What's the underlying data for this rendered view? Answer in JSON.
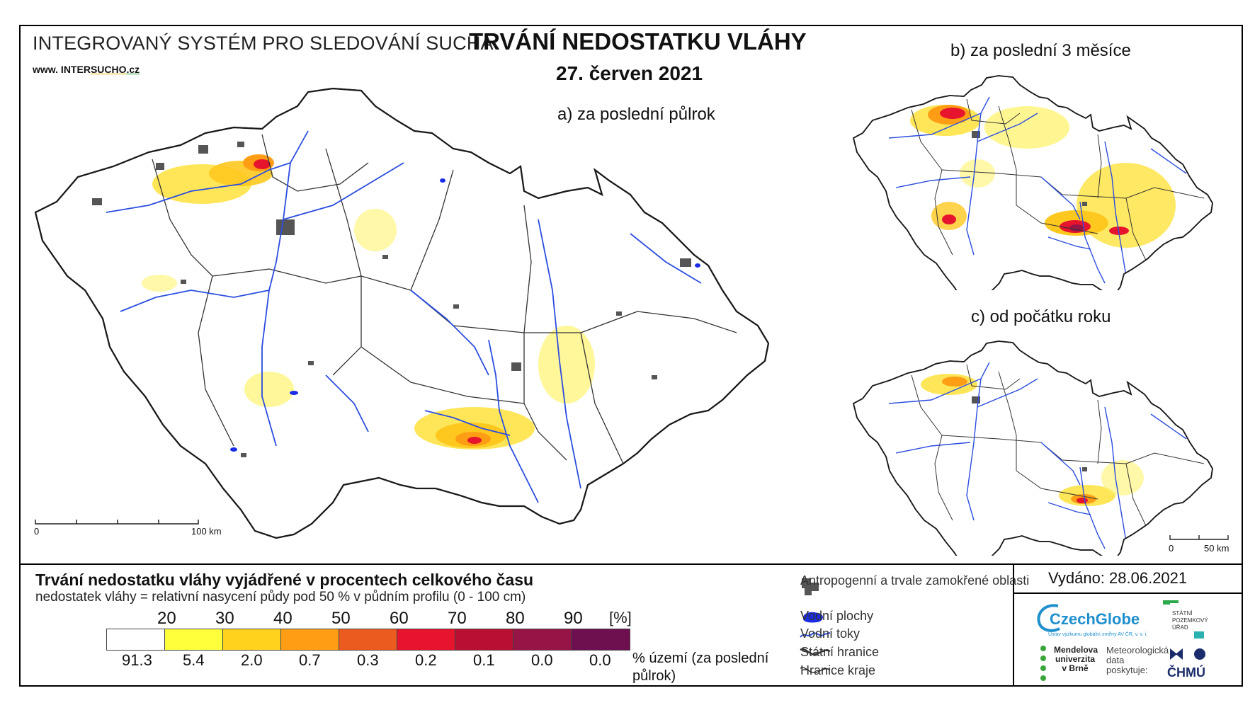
{
  "header": {
    "system_name": "INTEGROVANÝ SYSTÉM PRO SLEDOVÁNÍ SUCHA",
    "website_prefix": "www. INTER",
    "website_u1": "SUCHO",
    "website_suffix": ".cz",
    "title": "TRVÁNÍ NEDOSTATKU VLÁHY",
    "date": "27. červen 2021"
  },
  "maps": {
    "a_label": "a) za poslední půlrok",
    "b_label": "b) za poslední 3 měsíce",
    "c_label": "c) od počátku roku",
    "a_scale": {
      "start": "0",
      "end": "100 km"
    },
    "c_scale": {
      "start": "0",
      "end": "50 km"
    }
  },
  "legend": {
    "title": "Trvání nedostatku vláhy vyjádřené v procentech celkového času",
    "subtitle": "nedostatek vláhy = relativní nasycení půdy pod 50 % v půdním profilu (0 - 100 cm)",
    "unit": "[%]",
    "thresholds": [
      "20",
      "30",
      "40",
      "50",
      "60",
      "70",
      "80",
      "90"
    ],
    "colors": [
      "#ffffff",
      "#ffff3c",
      "#ffd21e",
      "#ff9e14",
      "#eb5a1e",
      "#e6142d",
      "#b90f32",
      "#961446",
      "#6e1050"
    ],
    "area_percent": [
      "91.3",
      "5.4",
      "2.0",
      "0.7",
      "0.3",
      "0.2",
      "0.1",
      "0.0",
      "0.0"
    ],
    "area_label": "% území (za poslední půlrok)"
  },
  "symbols": {
    "urban": "Antropogenní a trvale zamokřené oblasti",
    "water_bodies": "Vodní plochy",
    "rivers": "Vodní toky",
    "state_border": "Státní hranice",
    "region_border": "Hranice kraje",
    "urban_color": "#555555",
    "water_color": "#1a2ce8"
  },
  "footer": {
    "issued": "Vydáno: 28.06.2021",
    "czechglobe": "CzechGlobe",
    "czechglobe_sub": "Ústav výzkumu globální změny AV ČR, v. v. i.",
    "spu": "STÁTNÍ POZEMKOVÝ ÚŘAD",
    "mendel": "Mendelova univerzita v Brně",
    "meteo": "Meteorologická data poskytuje:",
    "chmu": "ČHMÚ"
  }
}
